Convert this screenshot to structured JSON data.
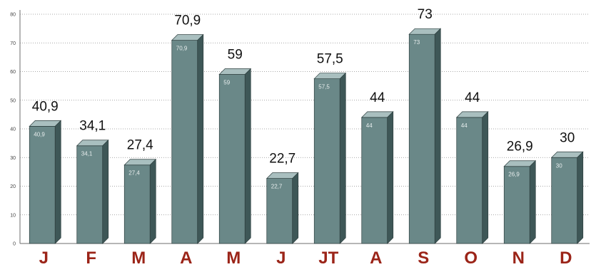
{
  "chart_data": {
    "type": "bar",
    "categories": [
      "J",
      "F",
      "M",
      "A",
      "M",
      "J",
      "JT",
      "A",
      "S",
      "O",
      "N",
      "D"
    ],
    "values": [
      40.9,
      34.1,
      27.4,
      70.9,
      59,
      22.7,
      57.5,
      44,
      73,
      44,
      26.9,
      30
    ],
    "value_labels": [
      "40,9",
      "34,1",
      "27,4",
      "70,9",
      "59",
      "22,7",
      "57,5",
      "44",
      "73",
      "44",
      "26,9",
      "30"
    ],
    "y_ticks": [
      "0",
      "10",
      "20",
      "30",
      "40",
      "50",
      "60",
      "70",
      "80"
    ],
    "ylim": [
      0,
      80
    ],
    "grid": true,
    "legend": "none",
    "bar_style": "3d",
    "colors": {
      "bar_front": "#6a8888",
      "bar_top": "#a9bfbf",
      "bar_side": "#3e5757",
      "category_label": "#9b2418",
      "value_label": "#111111"
    }
  }
}
